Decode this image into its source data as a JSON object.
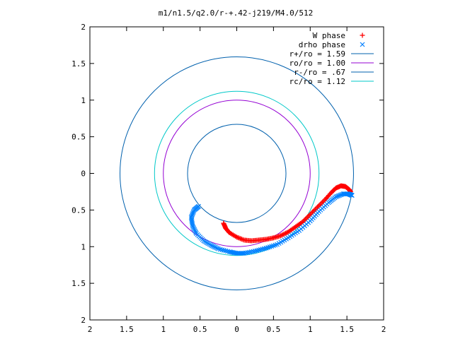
{
  "chart_data": {
    "type": "scatter",
    "title": "m1/n1.5/q2.0/r-+.42-j219/M4.0/512",
    "xlim": [
      -2,
      2
    ],
    "ylim": [
      -2,
      2
    ],
    "x_ticks": [
      {
        "value": -2,
        "label": "2"
      },
      {
        "value": -1.5,
        "label": "1.5"
      },
      {
        "value": -1,
        "label": "1"
      },
      {
        "value": -0.5,
        "label": "0.5"
      },
      {
        "value": 0,
        "label": "0"
      },
      {
        "value": 0.5,
        "label": "0.5"
      },
      {
        "value": 1,
        "label": "1"
      },
      {
        "value": 1.5,
        "label": "1.5"
      },
      {
        "value": 2,
        "label": "2"
      }
    ],
    "y_ticks": [
      {
        "value": 2,
        "label": "2"
      },
      {
        "value": 1.5,
        "label": "1.5"
      },
      {
        "value": 1,
        "label": "1"
      },
      {
        "value": 0.5,
        "label": "0.5"
      },
      {
        "value": 0,
        "label": "0"
      },
      {
        "value": -0.5,
        "label": "0.5"
      },
      {
        "value": -1,
        "label": "1"
      },
      {
        "value": -1.5,
        "label": "1.5"
      },
      {
        "value": -2,
        "label": "2"
      }
    ],
    "grid": false,
    "legend_position": "top-right",
    "series": [
      {
        "name": "W phase",
        "kind": "points",
        "marker": "+",
        "color": "#ff0000",
        "points": [
          [
            -0.18,
            -0.68
          ],
          [
            -0.15,
            -0.75
          ],
          [
            -0.1,
            -0.81
          ],
          [
            0.0,
            -0.87
          ],
          [
            0.1,
            -0.91
          ],
          [
            0.2,
            -0.92
          ],
          [
            0.3,
            -0.91
          ],
          [
            0.4,
            -0.9
          ],
          [
            0.5,
            -0.88
          ],
          [
            0.6,
            -0.85
          ],
          [
            0.7,
            -0.8
          ],
          [
            0.8,
            -0.73
          ],
          [
            0.9,
            -0.66
          ],
          [
            1.0,
            -0.56
          ],
          [
            1.1,
            -0.46
          ],
          [
            1.2,
            -0.36
          ],
          [
            1.28,
            -0.27
          ],
          [
            1.35,
            -0.2
          ],
          [
            1.42,
            -0.17
          ],
          [
            1.48,
            -0.18
          ],
          [
            1.53,
            -0.22
          ],
          [
            1.55,
            -0.25
          ]
        ]
      },
      {
        "name": "drho phase",
        "kind": "points",
        "marker": "x",
        "color": "#0080ff",
        "points": [
          [
            -0.52,
            -0.45
          ],
          [
            -0.58,
            -0.5
          ],
          [
            -0.62,
            -0.6
          ],
          [
            -0.6,
            -0.72
          ],
          [
            -0.55,
            -0.82
          ],
          [
            -0.45,
            -0.92
          ],
          [
            -0.35,
            -0.98
          ],
          [
            -0.25,
            -1.03
          ],
          [
            -0.1,
            -1.07
          ],
          [
            0.0,
            -1.09
          ],
          [
            0.1,
            -1.09
          ],
          [
            0.25,
            -1.06
          ],
          [
            0.4,
            -1.02
          ],
          [
            0.55,
            -0.97
          ],
          [
            0.7,
            -0.88
          ],
          [
            0.85,
            -0.78
          ],
          [
            1.0,
            -0.65
          ],
          [
            1.12,
            -0.52
          ],
          [
            1.25,
            -0.4
          ],
          [
            1.35,
            -0.32
          ],
          [
            1.45,
            -0.28
          ],
          [
            1.52,
            -0.28
          ],
          [
            1.57,
            -0.3
          ]
        ]
      },
      {
        "name": "r+/ro = 1.59",
        "kind": "circle",
        "radius": 1.59,
        "color": "#0060ad"
      },
      {
        "name": "ro/ro = 1.00",
        "kind": "circle",
        "radius": 1.0,
        "color": "#9400d3"
      },
      {
        "name": "r-/ro = .67",
        "kind": "circle",
        "radius": 0.67,
        "color": "#0060ad"
      },
      {
        "name": "rc/ro = 1.12",
        "kind": "circle",
        "radius": 1.12,
        "color": "#00c8c8"
      }
    ]
  }
}
